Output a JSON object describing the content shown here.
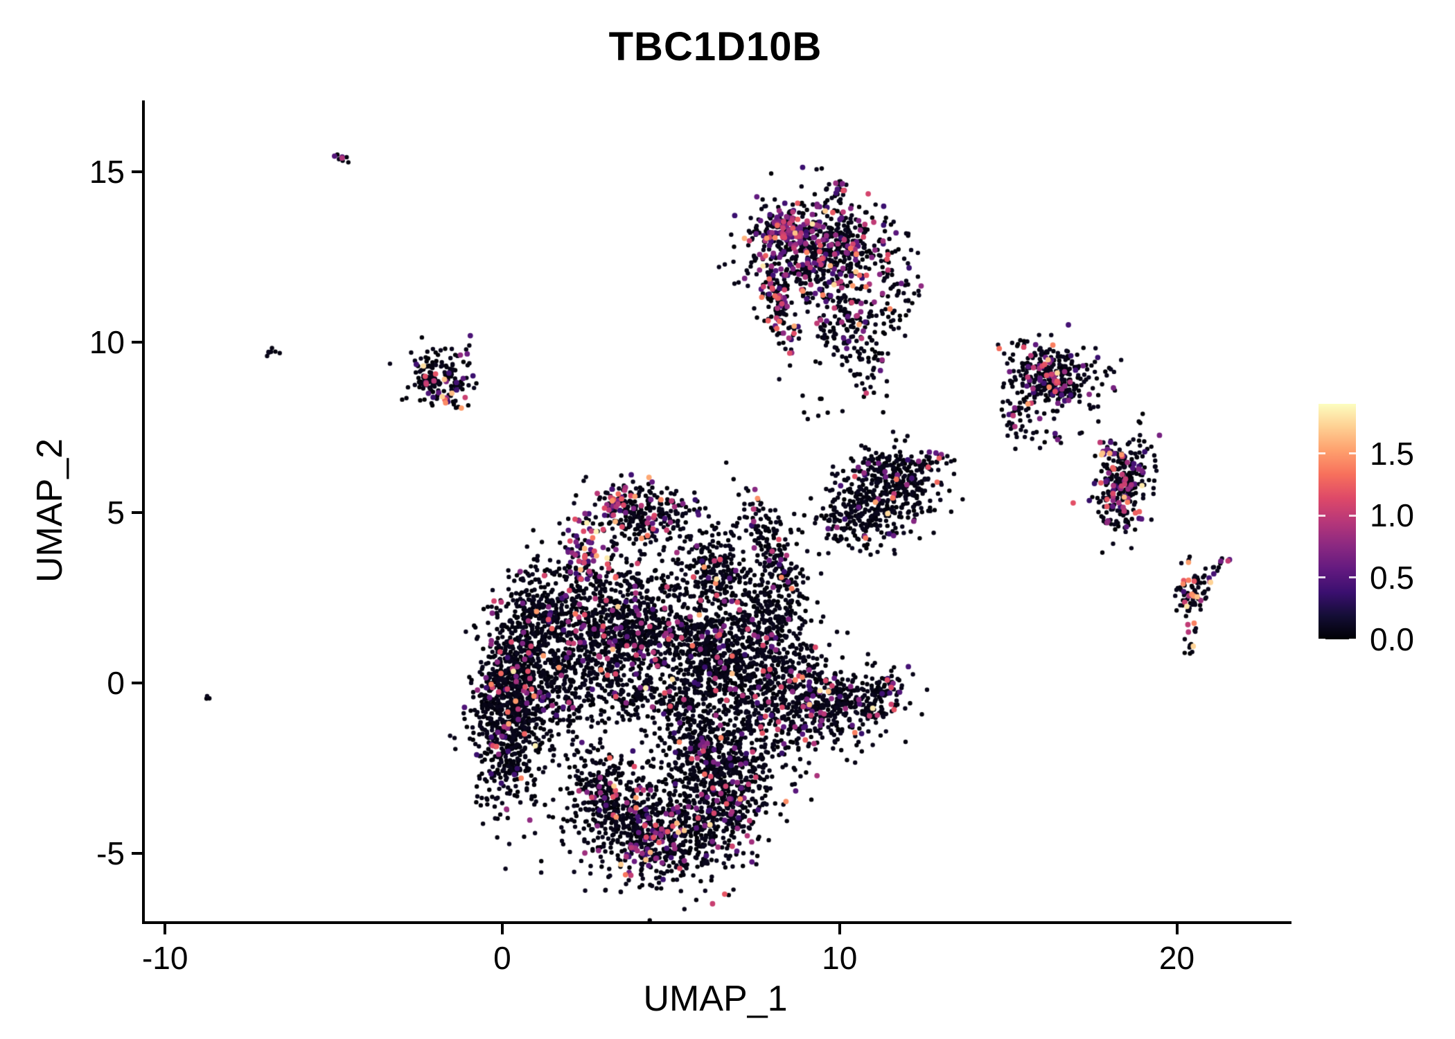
{
  "chart_data": {
    "type": "scatter",
    "title": "TBC1D10B",
    "xlabel": "UMAP_1",
    "ylabel": "UMAP_2",
    "xlim": [
      -10.6,
      23.4
    ],
    "ylim": [
      -7.0,
      17.1
    ],
    "grid": false,
    "x_ticks": [
      {
        "value": -10,
        "label": "-10"
      },
      {
        "value": 0,
        "label": "0"
      },
      {
        "value": 10,
        "label": "10"
      },
      {
        "value": 20,
        "label": "20"
      }
    ],
    "y_ticks": [
      {
        "value": 15,
        "label": "15"
      },
      {
        "value": 10,
        "label": "10"
      },
      {
        "value": 5,
        "label": "5"
      },
      {
        "value": 0,
        "label": "0"
      },
      {
        "value": -5,
        "label": "-5"
      }
    ],
    "colorbar": {
      "min": 0,
      "max": 1.9,
      "position": "right",
      "ticks": [
        {
          "value": 1.5,
          "label": "1.5"
        },
        {
          "value": 1.0,
          "label": "1.0"
        },
        {
          "value": 0.5,
          "label": "0.5"
        },
        {
          "value": 0.0,
          "label": "0.0"
        }
      ]
    },
    "colormap": {
      "name": "magma",
      "stops": [
        {
          "t": 0.0,
          "color": "#000004"
        },
        {
          "t": 0.1,
          "color": "#140e36"
        },
        {
          "t": 0.2,
          "color": "#3b0f70"
        },
        {
          "t": 0.3,
          "color": "#641a80"
        },
        {
          "t": 0.4,
          "color": "#8c2981"
        },
        {
          "t": 0.5,
          "color": "#b73779"
        },
        {
          "t": 0.6,
          "color": "#de4968"
        },
        {
          "t": 0.7,
          "color": "#f7705c"
        },
        {
          "t": 0.8,
          "color": "#fe9f6d"
        },
        {
          "t": 0.9,
          "color": "#fecf92"
        },
        {
          "t": 1.0,
          "color": "#fcfdbf"
        }
      ]
    },
    "point": {
      "radius_dark": 3.2,
      "radius_colored": 3.9
    },
    "seed": 1337,
    "expression": {
      "zero_max": 0.1,
      "mid_min": 0.35,
      "mid_span": 0.85,
      "hot_min": 1.15,
      "hot_span": 0.7,
      "default_hot_frac": 0.12
    },
    "clusters": [
      {
        "cx": -8.7,
        "cy": -0.4,
        "sx": 0.06,
        "sy": 0.05,
        "n": 3,
        "f": 0
      },
      {
        "cx": -4.75,
        "cy": 15.4,
        "sx": 0.18,
        "sy": 0.06,
        "rot": -35,
        "n": 9,
        "f": 0.25
      },
      {
        "cx": -6.85,
        "cy": 9.7,
        "sx": 0.12,
        "sy": 0.07,
        "n": 7,
        "f": 0.3
      },
      {
        "cx": -1.75,
        "cy": 9.1,
        "sx": 0.5,
        "sy": 0.4,
        "n": 130,
        "f": 0.1
      },
      {
        "cx": -2.3,
        "cy": 8.9,
        "sx": 0.2,
        "sy": 0.3,
        "n": 30,
        "f": 0.05
      },
      {
        "cx": -1.5,
        "cy": 8.3,
        "sx": 0.2,
        "sy": 0.1,
        "n": 14,
        "f": 0.55,
        "hi": 0.5
      },
      {
        "cx": 9.4,
        "cy": 12.7,
        "sx": 1.05,
        "sy": 0.8,
        "n": 650,
        "f": 0.22
      },
      {
        "cx": 8.4,
        "cy": 13.3,
        "sx": 0.45,
        "sy": 0.35,
        "n": 120,
        "f": 0.35
      },
      {
        "cx": 8.15,
        "cy": 11.3,
        "sx": 0.22,
        "sy": 0.75,
        "rot": 15,
        "n": 130,
        "f": 0.3,
        "hi": 0.25
      },
      {
        "cx": 9.9,
        "cy": 14.35,
        "sx": 0.18,
        "sy": 0.22,
        "n": 22,
        "f": 0.1
      },
      {
        "cx": 10.3,
        "cy": 10.4,
        "sx": 0.55,
        "sy": 0.55,
        "n": 130,
        "f": 0.12
      },
      {
        "cx": 10.9,
        "cy": 9.1,
        "sx": 0.3,
        "sy": 0.45,
        "n": 30,
        "f": 0.1
      },
      {
        "cx": 11.6,
        "cy": 11.6,
        "sx": 0.5,
        "sy": 0.8,
        "n": 60,
        "f": 0.15
      },
      {
        "cx": 9.3,
        "cy": 7.9,
        "sx": 0.25,
        "sy": 0.3,
        "n": 8,
        "f": 0
      },
      {
        "cx": 12.6,
        "cy": 6.5,
        "sx": 0.35,
        "sy": 0.2,
        "n": 14,
        "f": 0.1
      },
      {
        "cx": 16.3,
        "cy": 9.0,
        "sx": 0.7,
        "sy": 0.45,
        "rot": -10,
        "n": 330,
        "f": 0.22
      },
      {
        "cx": 15.35,
        "cy": 7.9,
        "sx": 0.3,
        "sy": 0.3,
        "n": 45,
        "f": 0.1
      },
      {
        "cx": 16.2,
        "cy": 7.2,
        "sx": 0.5,
        "sy": 0.3,
        "n": 18,
        "f": 0.1
      },
      {
        "cx": 18.35,
        "cy": 5.8,
        "sx": 0.4,
        "sy": 0.75,
        "rot": -15,
        "n": 270,
        "f": 0.2,
        "hi": 0.2
      },
      {
        "cx": 17.95,
        "cy": 6.7,
        "sx": 0.15,
        "sy": 0.15,
        "n": 14,
        "f": 0.6,
        "hi": 0.5
      },
      {
        "cx": 20.45,
        "cy": 2.7,
        "sx": 0.28,
        "sy": 0.4,
        "n": 75,
        "f": 0.3,
        "hi": 0.3
      },
      {
        "cx": 21.35,
        "cy": 3.5,
        "sx": 0.2,
        "sy": 0.07,
        "rot": 30,
        "n": 10,
        "f": 0.5
      },
      {
        "cx": 20.4,
        "cy": 1.3,
        "sx": 0.1,
        "sy": 0.3,
        "n": 12,
        "f": 0.1
      },
      {
        "cx": 10.6,
        "cy": 5.0,
        "sx": 0.65,
        "sy": 0.55,
        "n": 260,
        "f": 0.06
      },
      {
        "cx": 12.0,
        "cy": 5.8,
        "sx": 0.55,
        "sy": 0.5,
        "n": 190,
        "f": 0.06
      },
      {
        "cx": 11.3,
        "cy": 6.4,
        "sx": 0.55,
        "sy": 0.25,
        "n": 90,
        "f": 0.05
      },
      {
        "cx": 13.05,
        "cy": 6.55,
        "sx": 0.25,
        "sy": 0.12,
        "n": 10,
        "f": 0.1
      },
      {
        "cx": 8.05,
        "cy": 3.9,
        "sx": 0.3,
        "sy": 0.9,
        "rot": 20,
        "n": 190,
        "f": 0.1
      },
      {
        "cx": 4.3,
        "cy": 4.9,
        "sx": 0.85,
        "sy": 0.5,
        "n": 260,
        "f": 0.14
      },
      {
        "cx": 3.35,
        "cy": 5.3,
        "sx": 0.22,
        "sy": 0.22,
        "n": 35,
        "f": 0.5
      },
      {
        "cx": 2.4,
        "cy": 3.9,
        "sx": 0.3,
        "sy": 0.55,
        "n": 70,
        "f": 0.45
      },
      {
        "cx": 0.2,
        "cy": -0.9,
        "sx": 0.5,
        "sy": 1.35,
        "n": 800,
        "f": 0.07,
        "hi": 0.25
      },
      {
        "cx": 1.5,
        "cy": 0.4,
        "sx": 0.8,
        "sy": 1.2,
        "n": 520,
        "f": 0.06
      },
      {
        "cx": 1.0,
        "cy": 2.2,
        "sx": 0.5,
        "sy": 0.7,
        "n": 180,
        "f": 0.08
      },
      {
        "cx": 3.4,
        "cy": 2.0,
        "sx": 1.05,
        "sy": 0.9,
        "n": 580,
        "f": 0.07
      },
      {
        "type": "ring",
        "cx": 4.6,
        "cy": 0.5,
        "r": 1.5,
        "sx": 0.5,
        "asp": 0.8,
        "n": 650,
        "f": 0.06
      },
      {
        "cx": 6.6,
        "cy": 0.8,
        "sx": 0.75,
        "sy": 1.25,
        "n": 520,
        "f": 0.07
      },
      {
        "cx": 6.3,
        "cy": 3.3,
        "sx": 0.6,
        "sy": 0.6,
        "n": 200,
        "f": 0.08
      },
      {
        "cx": 7.9,
        "cy": 1.8,
        "sx": 0.5,
        "sy": 0.7,
        "n": 180,
        "f": 0.08
      },
      {
        "cx": 8.3,
        "cy": -0.2,
        "sx": 0.75,
        "sy": 1.05,
        "n": 430,
        "f": 0.08
      },
      {
        "cx": 10.1,
        "cy": -0.6,
        "sx": 0.8,
        "sy": 0.5,
        "n": 330,
        "f": 0.1
      },
      {
        "cx": 11.3,
        "cy": -0.3,
        "sx": 0.3,
        "sy": 0.35,
        "n": 60,
        "f": 0.15
      },
      {
        "cx": 6.9,
        "cy": -2.6,
        "sx": 0.7,
        "sy": 0.7,
        "n": 300,
        "f": 0.07
      },
      {
        "cx": 5.8,
        "cy": -1.8,
        "sx": 0.6,
        "sy": 0.6,
        "n": 240,
        "f": 0.07
      },
      {
        "cx": 4.9,
        "cy": -4.3,
        "sx": 1.15,
        "sy": 0.85,
        "n": 650,
        "f": 0.1
      },
      {
        "cx": 2.95,
        "cy": -3.3,
        "sx": 0.6,
        "sy": 0.75,
        "n": 260,
        "f": 0.08
      },
      {
        "cx": 4.6,
        "cy": -4.7,
        "sx": 0.5,
        "sy": 0.4,
        "n": 70,
        "f": 0.45
      },
      {
        "cx": 6.5,
        "cy": -3.9,
        "sx": 0.5,
        "sy": 0.5,
        "n": 120,
        "f": 0.15
      }
    ]
  },
  "colors": {
    "background": "#ffffff",
    "axis": "#000000",
    "text": "#000000"
  }
}
